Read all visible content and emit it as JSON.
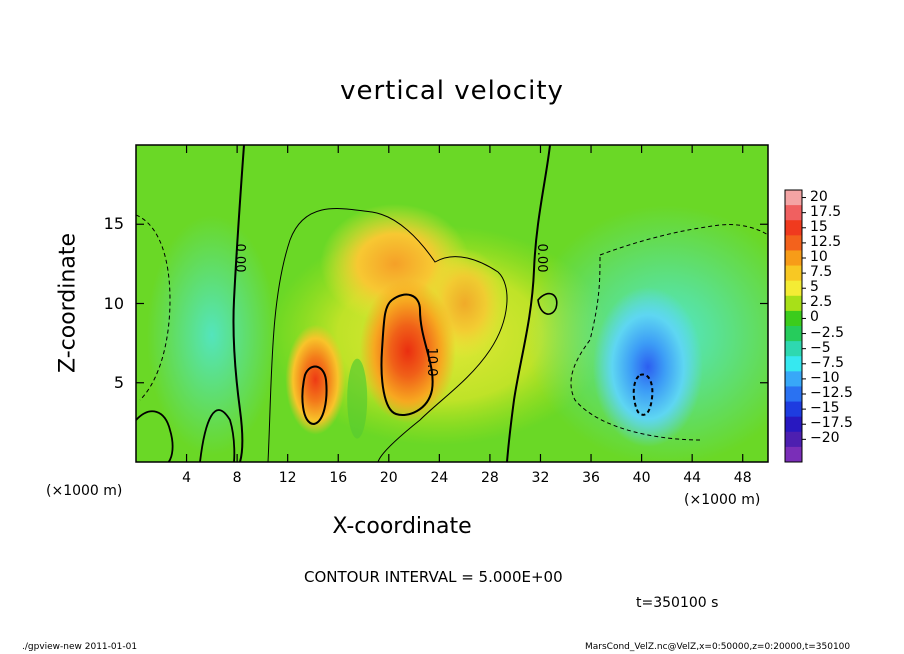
{
  "chart_data": {
    "type": "heatmap",
    "title": "vertical velocity",
    "xlabel": "X-coordinate",
    "ylabel": "Z-coordinate",
    "x_unit_label": "(×1000 m)",
    "xlim": [
      0,
      50
    ],
    "ylim": [
      0,
      20
    ],
    "x_ticks": [
      "4",
      "8",
      "12",
      "16",
      "20",
      "24",
      "28",
      "32",
      "36",
      "40",
      "44",
      "48"
    ],
    "y_ticks": [
      "5",
      "10",
      "15"
    ],
    "contour_labels": [
      "0.00",
      "0.00",
      "10.0"
    ],
    "colorbar": {
      "ticks": [
        "20",
        "17.5",
        "15",
        "12.5",
        "10",
        "7.5",
        "5",
        "2.5",
        "0",
        "−2.5",
        "−5",
        "−7.5",
        "−10",
        "−12.5",
        "−15",
        "−17.5",
        "−20"
      ],
      "colors": [
        "#f4a4a4",
        "#f06060",
        "#f03a1e",
        "#f3621c",
        "#f79c18",
        "#f8c823",
        "#f4ec34",
        "#a8e018",
        "#3ccc1c",
        "#26cc5c",
        "#2ed8b0",
        "#36e8f0",
        "#38a8f8",
        "#2a72f2",
        "#1e3ce0",
        "#2818c0",
        "#4d1fb0",
        "#7a2eb8"
      ]
    },
    "features": [
      {
        "kind": "updraft",
        "x": 22,
        "z": 7,
        "peak": 14
      },
      {
        "kind": "updraft",
        "x": 14,
        "z": 5,
        "peak": 13
      },
      {
        "kind": "updraft",
        "x": 23,
        "z": 10,
        "peak": 8
      },
      {
        "kind": "downdraft",
        "x": 40,
        "z": 4.5,
        "peak": -11
      },
      {
        "kind": "downdraft",
        "x": 2,
        "z": 10,
        "peak": -4
      }
    ]
  },
  "labels": {
    "contour_interval": "CONTOUR INTERVAL = 5.000E+00",
    "time": "t=350100 s",
    "footer_left": "./gpview-new   2011-01-01",
    "footer_right": "MarsCond_VelZ.nc@VelZ,x=0:50000,z=0:20000,t=350100"
  }
}
